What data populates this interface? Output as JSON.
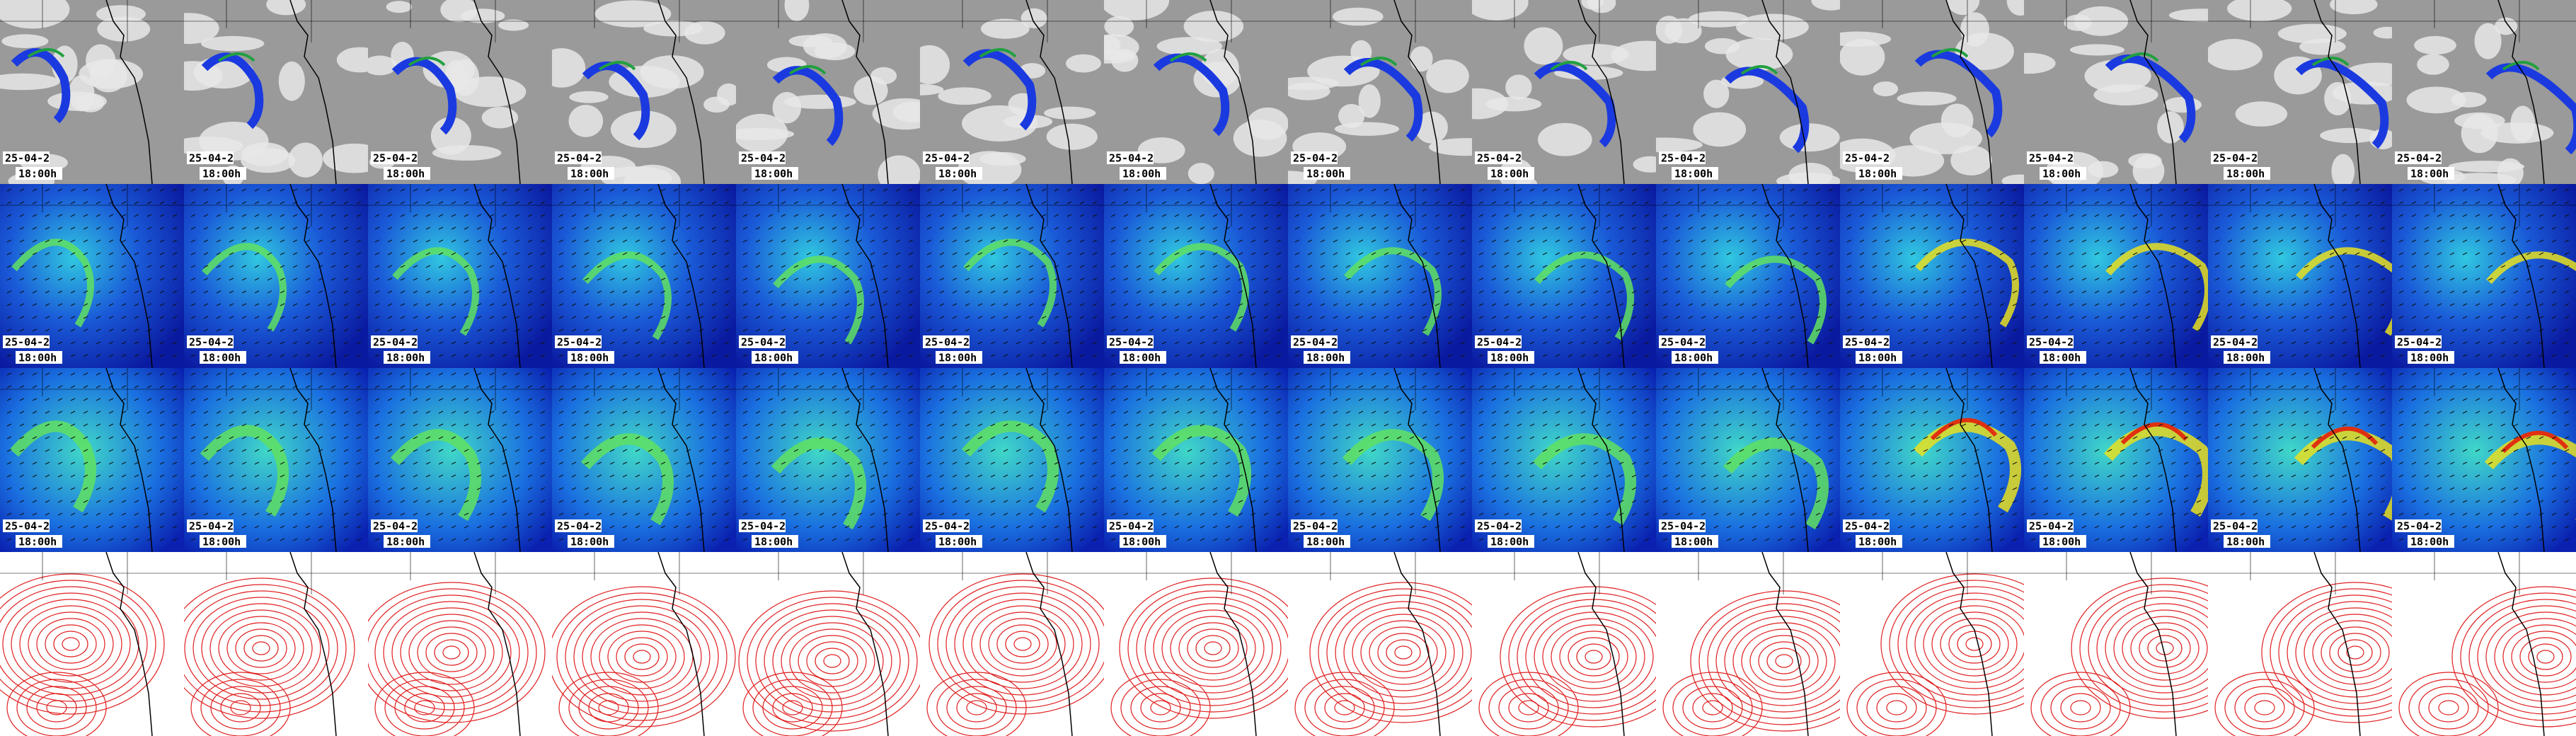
{
  "rows": [
    {
      "tiles": [
        {
          "date": "25-04-2",
          "time": "18:00h"
        },
        {
          "date": "25-04-2",
          "time": "18:00h"
        },
        {
          "date": "25-04-2",
          "time": "18:00h"
        },
        {
          "date": "25-04-2",
          "time": "18:00h"
        },
        {
          "date": "25-04-2",
          "time": "18:00h"
        },
        {
          "date": "25-04-2",
          "time": "18:00h"
        },
        {
          "date": "25-04-2",
          "time": "18:00h"
        },
        {
          "date": "25-04-2",
          "time": "18:00h"
        },
        {
          "date": "25-04-2",
          "time": "18:00h"
        },
        {
          "date": "25-04-2",
          "time": "18:00h"
        },
        {
          "date": "25-04-2",
          "time": "18:00h"
        },
        {
          "date": "25-04-2",
          "time": "18:00h"
        },
        {
          "date": "25-04-2",
          "time": "18:00h"
        },
        {
          "date": "25-04-2",
          "time": "18:00h"
        }
      ]
    },
    {
      "tiles": [
        {
          "date": "25-04-2",
          "time": "18:00h"
        },
        {
          "date": "25-04-2",
          "time": "18:00h"
        },
        {
          "date": "25-04-2",
          "time": "18:00h"
        },
        {
          "date": "25-04-2",
          "time": "18:00h"
        },
        {
          "date": "25-04-2",
          "time": "18:00h"
        },
        {
          "date": "25-04-2",
          "time": "18:00h"
        },
        {
          "date": "25-04-2",
          "time": "18:00h"
        },
        {
          "date": "25-04-2",
          "time": "18:00h"
        },
        {
          "date": "25-04-2",
          "time": "18:00h"
        },
        {
          "date": "25-04-2",
          "time": "18:00h"
        },
        {
          "date": "25-04-2",
          "time": "18:00h"
        },
        {
          "date": "25-04-2",
          "time": "18:00h"
        },
        {
          "date": "25-04-2",
          "time": "18:00h"
        },
        {
          "date": "25-04-2",
          "time": "18:00h"
        }
      ]
    },
    {
      "tiles": [
        {
          "date": "25-04-2",
          "time": "18:00h"
        },
        {
          "date": "25-04-2",
          "time": "18:00h"
        },
        {
          "date": "25-04-2",
          "time": "18:00h"
        },
        {
          "date": "25-04-2",
          "time": "18:00h"
        },
        {
          "date": "25-04-2",
          "time": "18:00h"
        },
        {
          "date": "25-04-2",
          "time": "18:00h"
        },
        {
          "date": "25-04-2",
          "time": "18:00h"
        },
        {
          "date": "25-04-2",
          "time": "18:00h"
        },
        {
          "date": "25-04-2",
          "time": "18:00h"
        },
        {
          "date": "25-04-2",
          "time": "18:00h"
        },
        {
          "date": "25-04-2",
          "time": "18:00h"
        },
        {
          "date": "25-04-2",
          "time": "18:00h"
        },
        {
          "date": "25-04-2",
          "time": "18:00h"
        },
        {
          "date": "25-04-2",
          "time": "18:00h"
        }
      ]
    }
  ]
}
